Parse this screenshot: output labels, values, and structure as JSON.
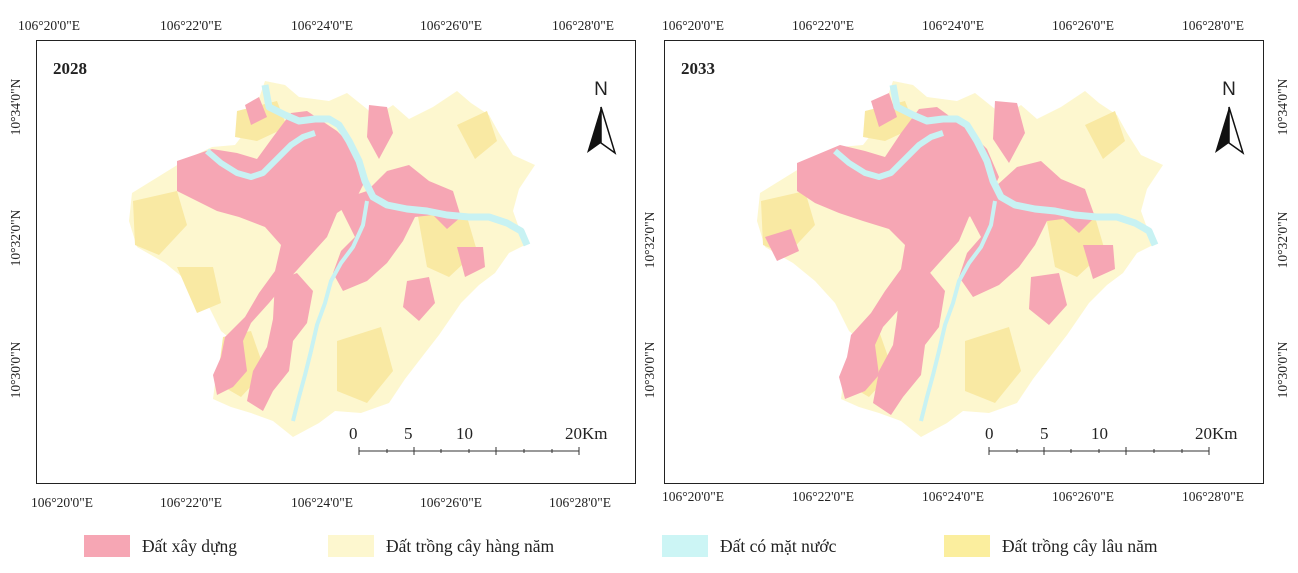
{
  "panels": [
    {
      "year": "2028",
      "lon_ticks": [
        "106°20'0\"E",
        "106°22'0\"E",
        "106°24'0\"E",
        "106°26'0\"E",
        "106°28'0\"E"
      ],
      "lat_ticks": [
        "10°34'0\"N",
        "10°32'0\"N",
        "10°30'0\"N"
      ],
      "north_label": "N",
      "scale": [
        "0",
        "5",
        "10",
        "20Km"
      ]
    },
    {
      "year": "2033",
      "lon_ticks": [
        "106°20'0\"E",
        "106°22'0\"E",
        "106°24'0\"E",
        "106°26'0\"E",
        "106°28'0\"E"
      ],
      "lat_ticks": [
        "10°34'0\"N",
        "10°32'0\"N",
        "10°30'0\"N"
      ],
      "north_label": "N",
      "scale": [
        "0",
        "5",
        "10",
        "20Km"
      ]
    }
  ],
  "legend": [
    {
      "label": "Đất xây dựng",
      "color": "#f6a6b4"
    },
    {
      "label": "Đất trồng cây hàng năm",
      "color": "#fdf7cf"
    },
    {
      "label": "Đất có mặt nước",
      "color": "#ccf5f5"
    },
    {
      "label": "Đất trồng cây lâu năm",
      "color": "#fbee9e"
    }
  ],
  "colors": {
    "built": "#f6a6b4",
    "annual_crop": "#fdf7cf",
    "water": "#c8f2f3",
    "perennial": "#f9e9a3",
    "frame": "#222222"
  }
}
